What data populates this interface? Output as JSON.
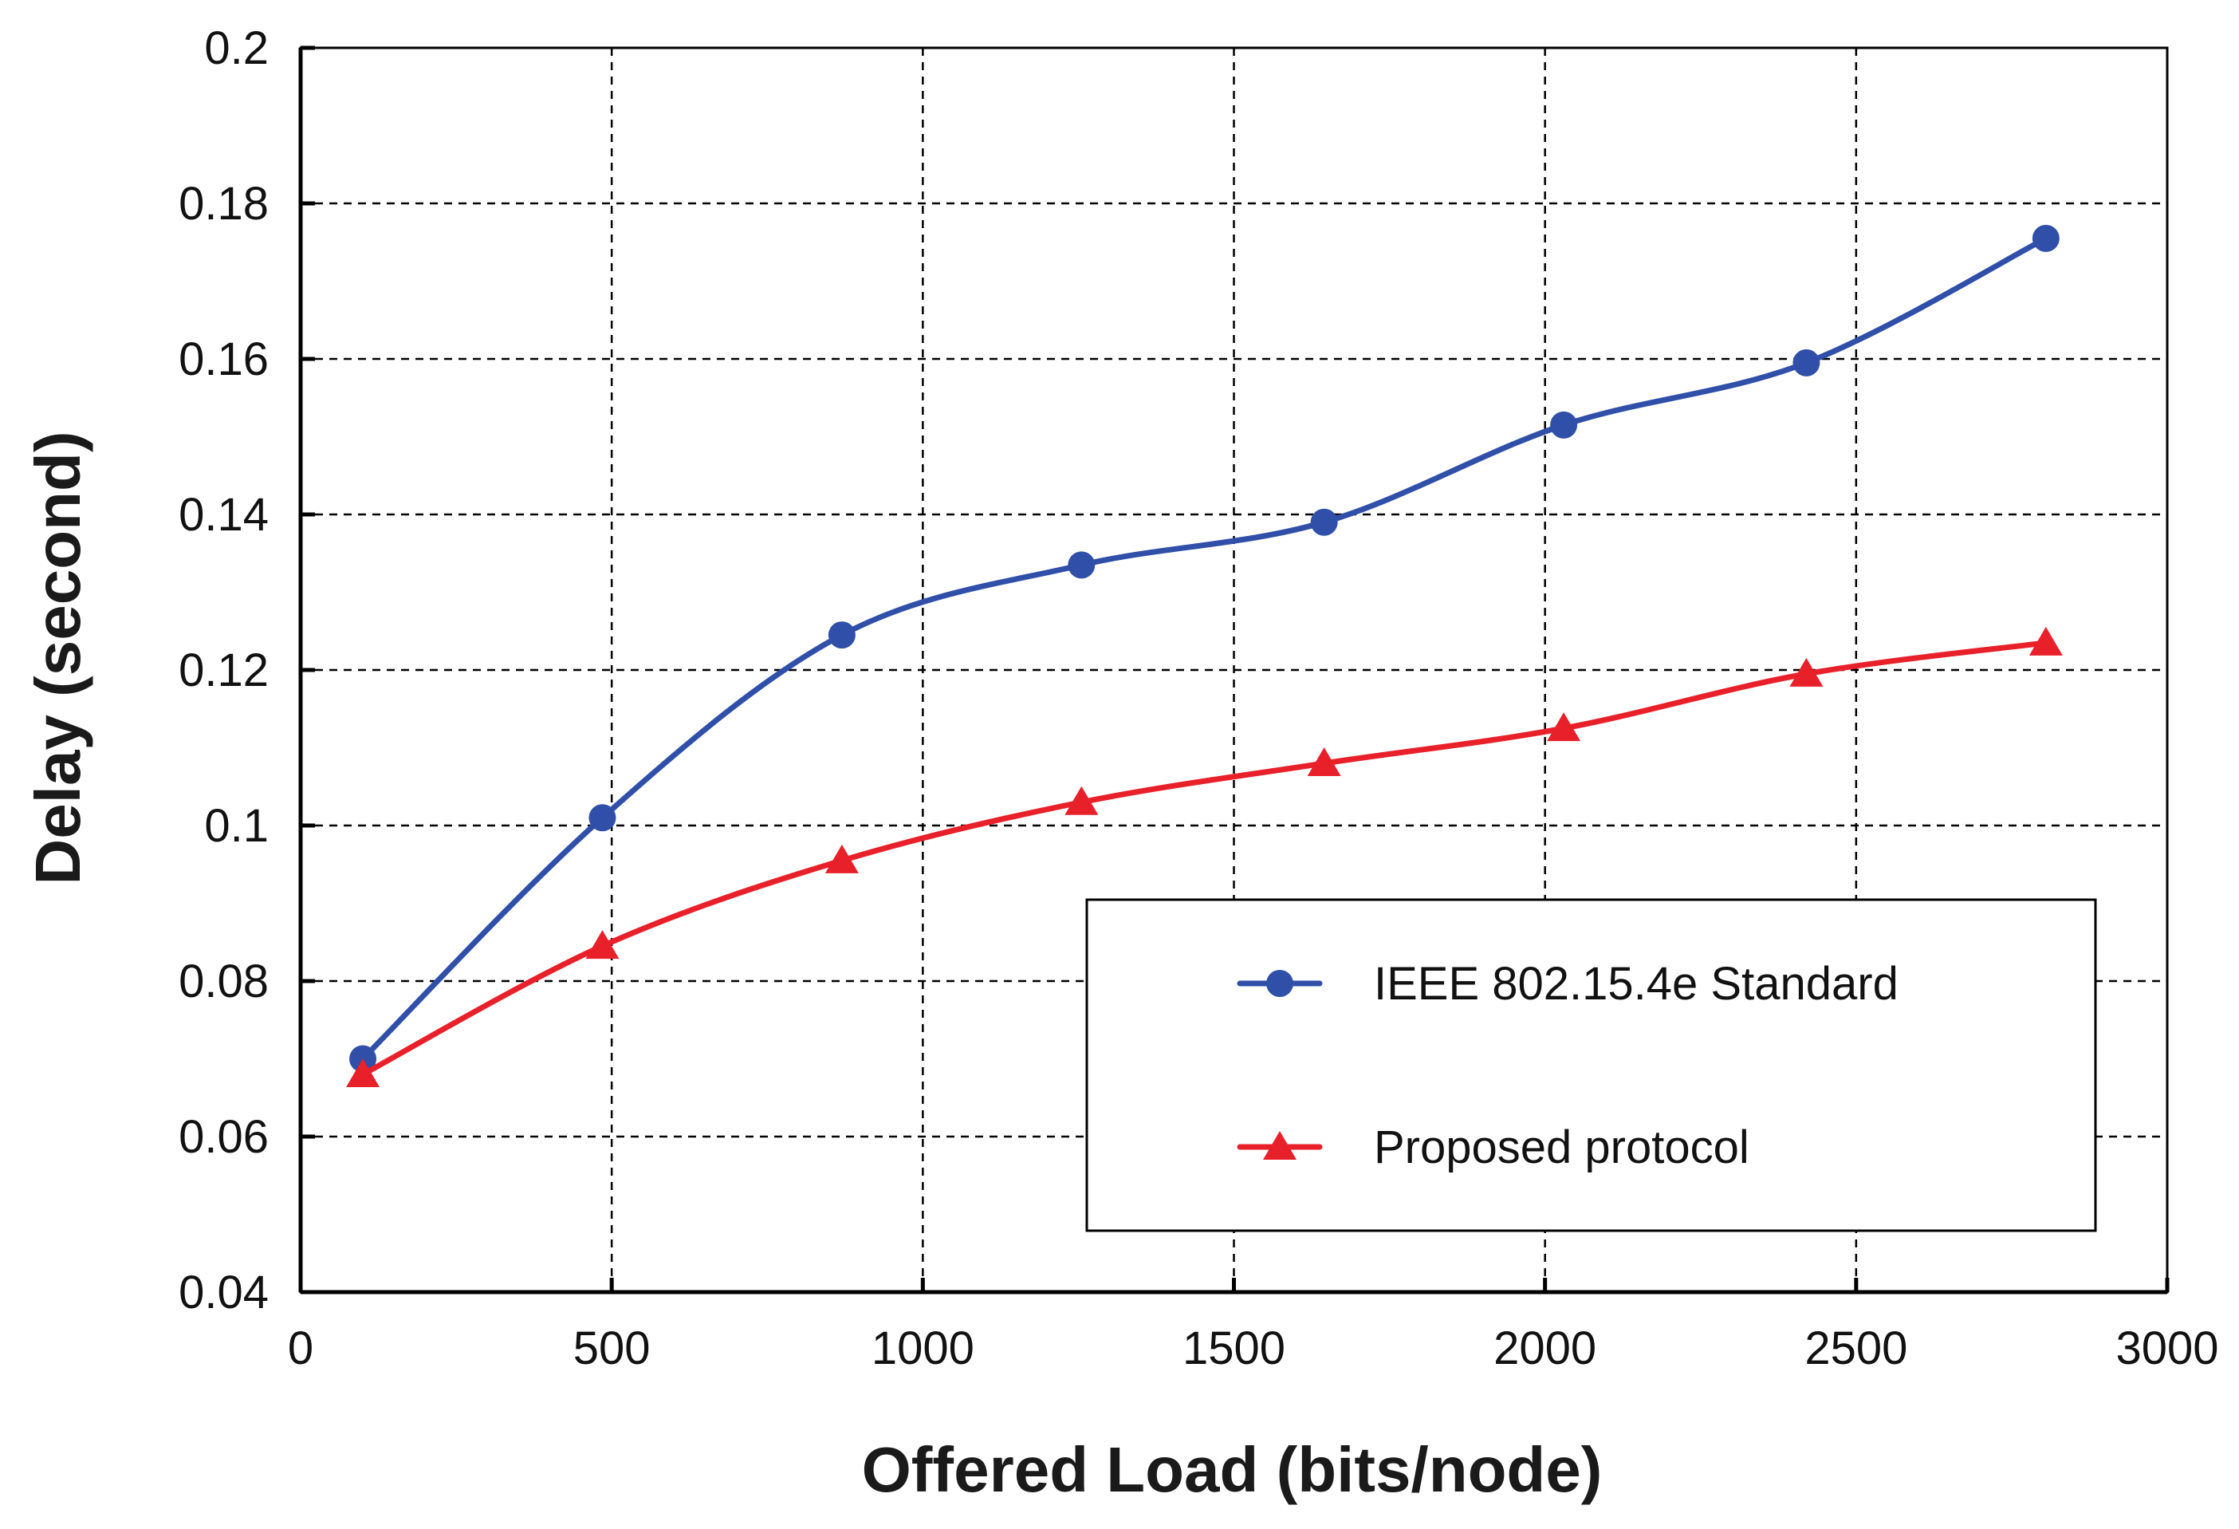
{
  "chart_data": {
    "type": "line",
    "title": "",
    "xlabel": "Offered Load  (bits/node)",
    "ylabel": "Delay (second)",
    "xlim": [
      0,
      3000
    ],
    "ylim": [
      0.04,
      0.2
    ],
    "x_ticks": [
      0,
      500,
      1000,
      1500,
      2000,
      2500,
      3000
    ],
    "x_tick_labels": [
      "0",
      "500",
      "1000",
      "1500",
      "2000",
      "2500",
      "3000"
    ],
    "y_ticks": [
      0.04,
      0.06,
      0.08,
      0.1,
      0.12,
      0.14,
      0.16,
      0.18,
      0.2
    ],
    "y_tick_labels": [
      "0.04",
      "0.06",
      "0.08",
      "0.1",
      "0.12",
      "0.14",
      "0.16",
      "0.18",
      "0.2"
    ],
    "grid": true,
    "legend_position": "bottom-right",
    "series": [
      {
        "name": "IEEE 802.15.4e Standard",
        "color": "#2f4fa8",
        "marker": "circle",
        "x": [
          100,
          485,
          870,
          1255,
          1645,
          2030,
          2420,
          2805
        ],
        "y": [
          0.07,
          0.101,
          0.1245,
          0.1335,
          0.139,
          0.1515,
          0.1595,
          0.1755
        ]
      },
      {
        "name": "Proposed protocol",
        "color": "#e8202a",
        "marker": "triangle",
        "x": [
          100,
          485,
          870,
          1255,
          1645,
          2030,
          2420,
          2805
        ],
        "y": [
          0.068,
          0.0845,
          0.0955,
          0.103,
          0.108,
          0.1125,
          0.1195,
          0.1235
        ]
      }
    ]
  }
}
